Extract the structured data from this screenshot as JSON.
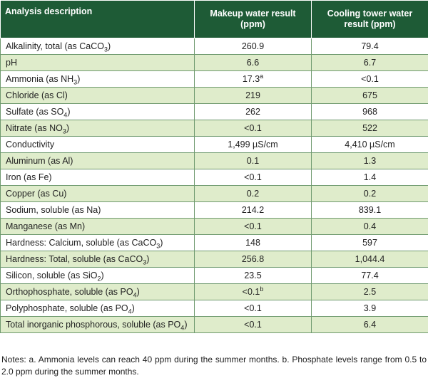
{
  "table": {
    "headers": [
      "Analysis description",
      "Makeup water result (ppm)",
      "Cooling tower water result (ppm)"
    ],
    "rows": [
      {
        "desc": "Alkalinity, total (as CaCO",
        "sub": "3",
        "tail": ")",
        "makeup": "260.9",
        "tower": "79.4"
      },
      {
        "desc": "pH",
        "makeup": "6.6",
        "tower": "6.7"
      },
      {
        "desc": "Ammonia (as NH",
        "sub": "3",
        "tail": ")",
        "makeup": "17.3",
        "makeup_sup": "a",
        "tower": "<0.1"
      },
      {
        "desc": "Chloride (as Cl)",
        "makeup": "219",
        "tower": "675"
      },
      {
        "desc": "Sulfate (as SO",
        "sub": "4",
        "tail": ")",
        "makeup": "262",
        "tower": "968"
      },
      {
        "desc": "Nitrate (as NO",
        "sub": "3",
        "tail": ")",
        "makeup": "<0.1",
        "tower": "522"
      },
      {
        "desc": "Conductivity",
        "makeup": "1,499 µS/cm",
        "tower": "4,410 µS/cm"
      },
      {
        "desc": "Aluminum (as Al)",
        "makeup": "0.1",
        "tower": "1.3"
      },
      {
        "desc": "Iron (as Fe)",
        "makeup": "<0.1",
        "tower": "1.4"
      },
      {
        "desc": "Copper (as Cu)",
        "makeup": "0.2",
        "tower": "0.2"
      },
      {
        "desc": "Sodium, soluble (as Na)",
        "makeup": "214.2",
        "tower": "839.1"
      },
      {
        "desc": "Manganese (as Mn)",
        "makeup": "<0.1",
        "tower": "0.4"
      },
      {
        "desc": "Hardness: Calcium, soluble (as CaCO",
        "sub": "3",
        "tail": ")",
        "makeup": "148",
        "tower": "597"
      },
      {
        "desc": "Hardness: Total, soluble (as CaCO",
        "sub": "3",
        "tail": ")",
        "makeup": "256.8",
        "tower": "1,044.4"
      },
      {
        "desc": "Silicon, soluble (as SiO",
        "sub": "2",
        "tail": ")",
        "makeup": "23.5",
        "tower": "77.4"
      },
      {
        "desc": "Orthophosphate, soluble (as PO",
        "sub": "4",
        "tail": ")",
        "makeup": "<0.1",
        "makeup_sup": "b",
        "tower": "2.5"
      },
      {
        "desc": "Polyphosphate, soluble (as PO",
        "sub": "4",
        "tail": ")",
        "makeup": "<0.1",
        "tower": "3.9"
      },
      {
        "desc": "Total inorganic phosphorous, soluble (as PO",
        "sub": "4",
        "tail": ")",
        "makeup": "<0.1",
        "tower": "6.4"
      }
    ]
  },
  "notes": "Notes: a. Ammonia levels can reach 40 ppm during the summer months. b. Phosphate levels range from 0.5 to 2.0 ppm during the summer months.",
  "colors": {
    "header_bg": "#1e5b36",
    "row_alt_bg": "#dfeccb",
    "border": "#6f9a6f"
  }
}
